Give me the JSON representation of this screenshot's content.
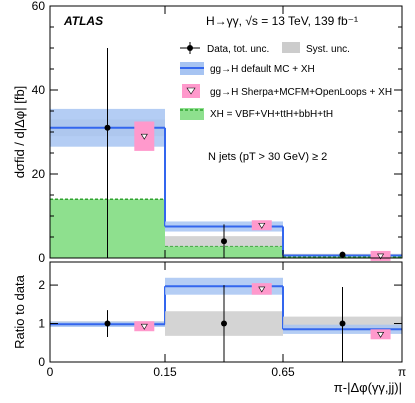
{
  "chart_data": [
    {
      "type": "bar",
      "panel": "main",
      "experiment": "ATLAS",
      "process": "H→γγ, √s = 13 TeV, 139 fb⁻¹",
      "ylabel": "dσfid / d|Δφ| [fb]",
      "ylim": [
        0,
        60
      ],
      "yticks": [
        0,
        20,
        40,
        60
      ],
      "bins": [
        {
          "lo_label": "0",
          "hi_label": "0.15"
        },
        {
          "lo_label": "0.15",
          "hi_label": "0.65"
        },
        {
          "lo_label": "0.65",
          "hi_label": "π"
        }
      ],
      "xticklabels": [
        "0",
        "0.15",
        "0.65",
        "π"
      ],
      "xlabel": "π-|Δφ(γγ,jj)|",
      "annotation": "N jets (pT > 30 GeV) ≥ 2",
      "legend": {
        "placement": "top-right",
        "entries": [
          "Data, tot. unc.",
          "Syst. unc.",
          "gg→H default MC + XH",
          "gg→H Sherpa+MCFM+OpenLoops + XH",
          "XH = VBF+VH+ttH+bbH+tH"
        ]
      },
      "series": [
        {
          "name": "Data, tot. unc.",
          "values": [
            31.0,
            4.0,
            0.8
          ],
          "err_low": [
            31.0,
            4.0,
            0.8
          ],
          "err_high": [
            19.0,
            4.0,
            0.7
          ],
          "syst": [
            2.0,
            1.2,
            0.2
          ]
        },
        {
          "name": "gg→H default MC + XH",
          "values": [
            31.0,
            7.5,
            0.6
          ],
          "band": [
            4.5,
            1.2,
            0.15
          ]
        },
        {
          "name": "gg→H Sherpa+MCFM+OpenLoops + XH",
          "values": [
            29.0,
            7.8,
            0.5
          ],
          "band": [
            3.5,
            0.8,
            0.15
          ]
        },
        {
          "name": "XH = VBF+VH+ttH+bbH+tH",
          "values": [
            14.0,
            2.8,
            0.3
          ]
        }
      ],
      "colors": {
        "data": "#000000",
        "syst": "#cccccc",
        "default_mc": "#3366ee",
        "default_band": "#a7c4f2",
        "sherpa": "#ff99cc",
        "xh_fill": "#8ee08e",
        "xh_line": "#2fa32f"
      }
    },
    {
      "type": "bar",
      "panel": "ratio",
      "ylabel": "Ratio to data",
      "ylim": [
        0,
        2.6
      ],
      "yticks": [
        0,
        1,
        2
      ],
      "xticklabels": [
        "0",
        "0.15",
        "0.65",
        "π"
      ],
      "xlabel": "π-|Δφ(γγ,jj)|",
      "series": [
        {
          "name": "Data, tot. unc.",
          "values": [
            1.0,
            1.0,
            1.0
          ],
          "err_low": [
            0.35,
            1.0,
            1.0
          ],
          "err_high": [
            0.35,
            1.0,
            0.95
          ],
          "syst": [
            0.06,
            0.32,
            0.18
          ]
        },
        {
          "name": "gg→H default MC + XH",
          "values": [
            0.98,
            1.97,
            0.85
          ],
          "band": [
            0.07,
            0.22,
            0.12
          ]
        },
        {
          "name": "gg→H Sherpa+MCFM+OpenLoops + XH",
          "values": [
            0.93,
            1.9,
            0.72
          ],
          "band": [
            0.06,
            0.15,
            0.07
          ]
        }
      ]
    }
  ]
}
